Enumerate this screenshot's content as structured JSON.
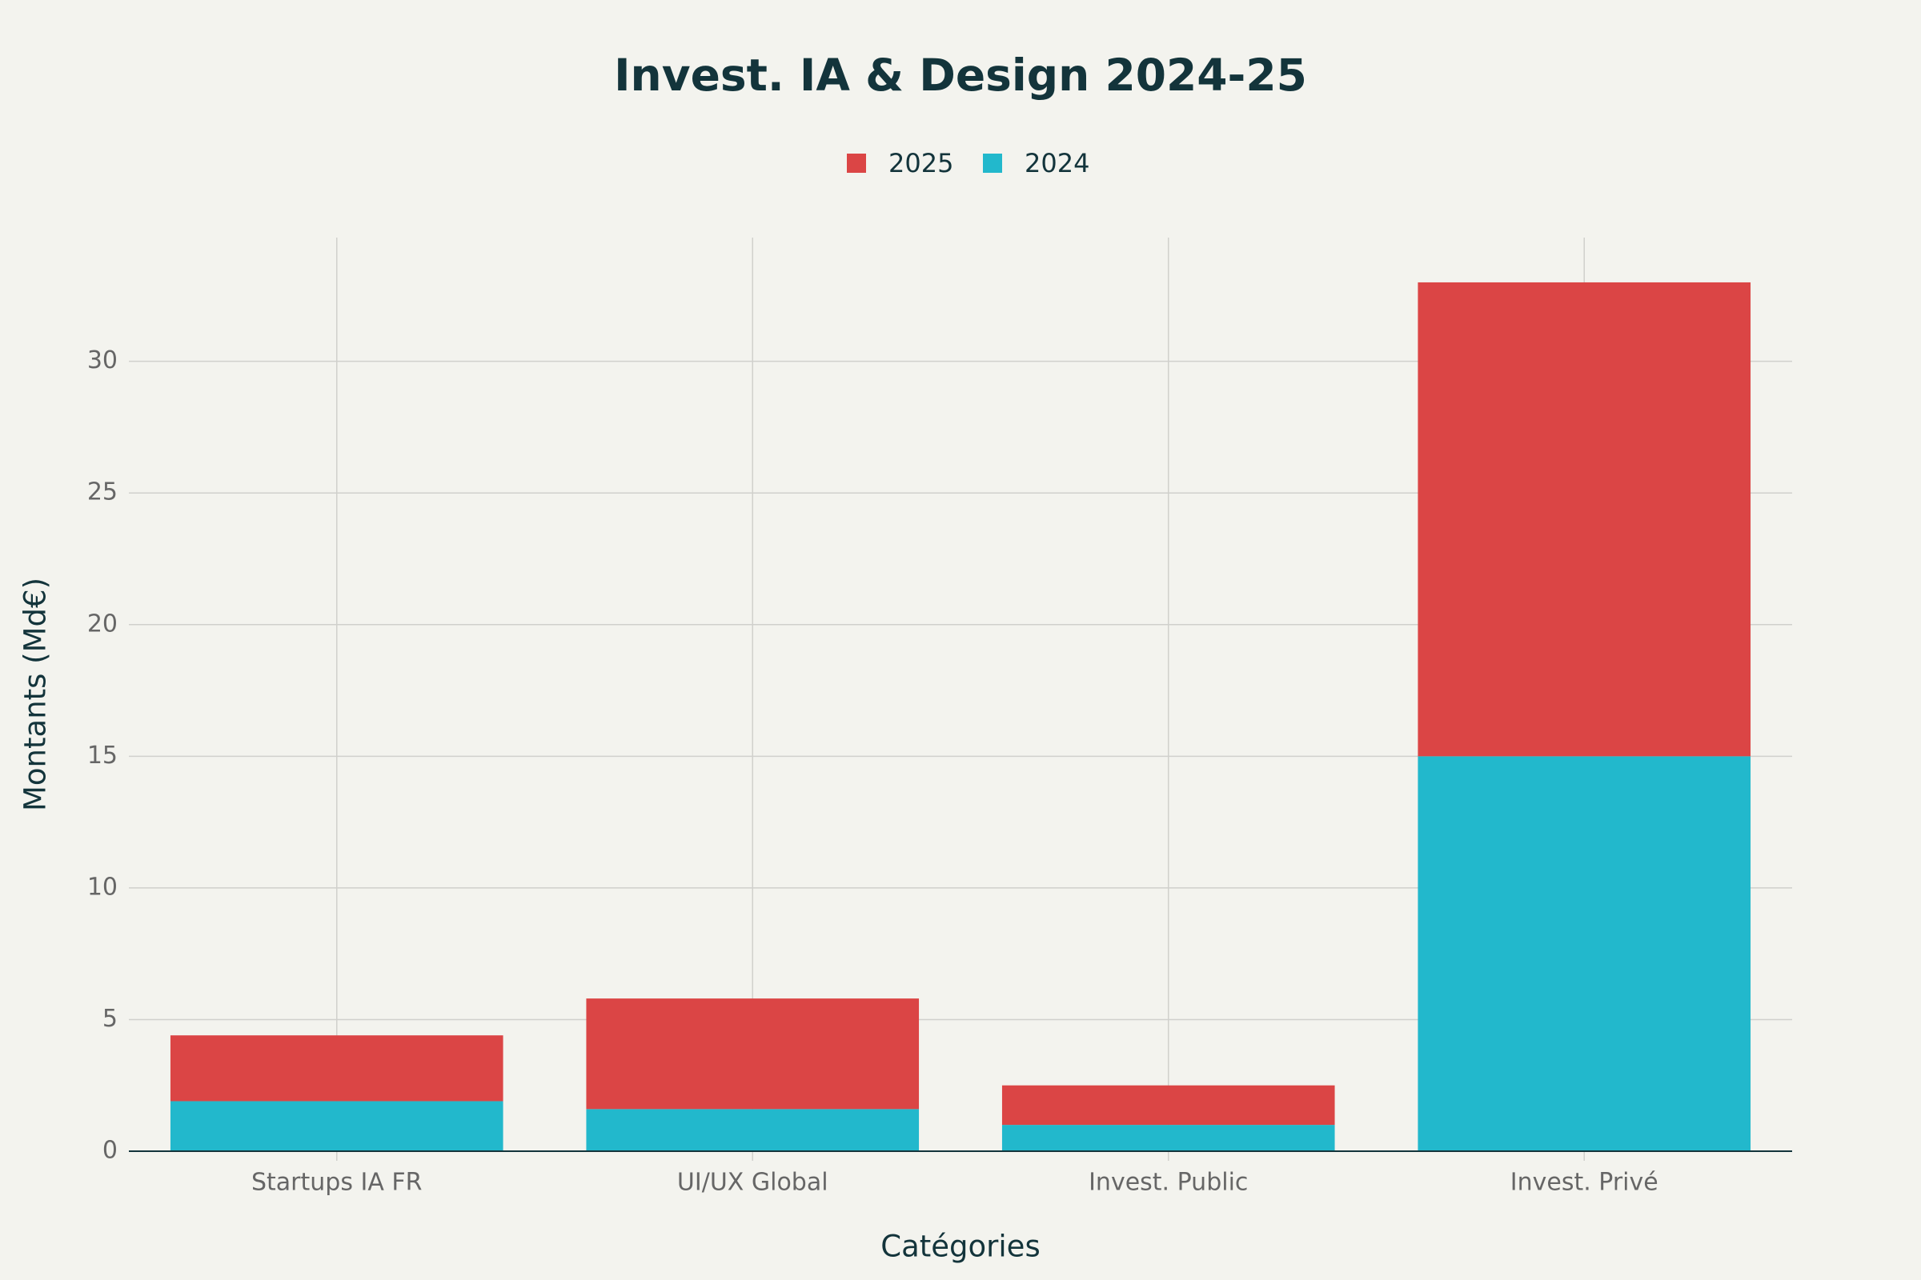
{
  "chart_data": {
    "type": "stacked-bar",
    "title": "Invest. IA & Design 2024-25",
    "x_label": "Catégories",
    "y_label": "Montants (Md€)",
    "categories": [
      "Startups IA FR",
      "UI/UX Global",
      "Invest. Public",
      "Invest. Privé"
    ],
    "series": [
      {
        "name": "2024",
        "color": "#22b8cc",
        "values": [
          1.9,
          1.6,
          1.0,
          15
        ]
      },
      {
        "name": "2025",
        "color": "#db4545",
        "values": [
          2.5,
          4.2,
          1.5,
          18
        ]
      }
    ],
    "ylim": [
      0,
      34.7
    ],
    "yticks": [
      0,
      5,
      10,
      15,
      20,
      25,
      30
    ],
    "grid": true
  }
}
